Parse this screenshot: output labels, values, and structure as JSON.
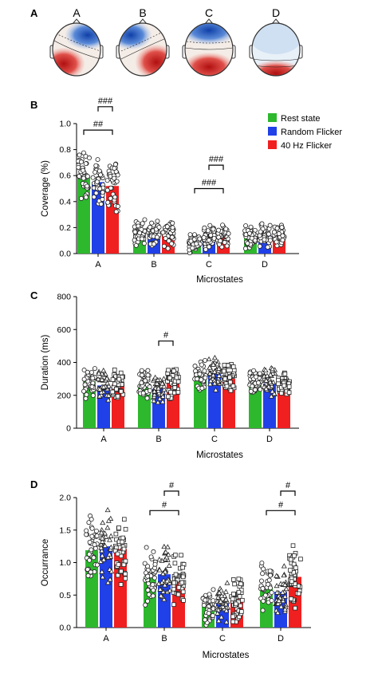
{
  "panel_labels": [
    "A",
    "B",
    "C",
    "D"
  ],
  "microstate_maps": [
    {
      "label": "A"
    },
    {
      "label": "B"
    },
    {
      "label": "C"
    },
    {
      "label": "D"
    }
  ],
  "legend": {
    "placement": "top-right of panel B",
    "entries": [
      {
        "name": "Rest state",
        "color": "#2db82d"
      },
      {
        "name": "Random Flicker",
        "color": "#2040e8"
      },
      {
        "name": "40 Hz Flicker",
        "color": "#f02020"
      }
    ]
  },
  "chart_data": [
    {
      "type": "bar",
      "panel": "B",
      "xlabel": "Microstates",
      "ylabel": "Coverage  (%)",
      "ylim": [
        0,
        1.0
      ],
      "yticks": [
        "0.0",
        "0.2",
        "0.4",
        "0.6",
        "0.8",
        "1.0"
      ],
      "categories": [
        "A",
        "B",
        "C",
        "D"
      ],
      "series": [
        {
          "name": "Rest state",
          "color": "#2db82d",
          "values": [
            0.59,
            0.16,
            0.09,
            0.13
          ]
        },
        {
          "name": "Random Flicker",
          "color": "#2040e8",
          "values": [
            0.55,
            0.15,
            0.12,
            0.14
          ]
        },
        {
          "name": "40 Hz Flicker",
          "color": "#f02020",
          "values": [
            0.52,
            0.15,
            0.13,
            0.14
          ]
        }
      ],
      "significance": [
        {
          "label": "##",
          "category": "A",
          "from": 0,
          "to": 2,
          "y": 0.95
        },
        {
          "label": "###",
          "category": "A",
          "from": 1,
          "to": 2,
          "y": 1.13
        },
        {
          "label": "###",
          "category": "C",
          "from": 0,
          "to": 2,
          "y": 0.5
        },
        {
          "label": "###",
          "category": "C",
          "from": 1,
          "to": 2,
          "y": 0.68
        }
      ]
    },
    {
      "type": "bar",
      "panel": "C",
      "xlabel": "Microstates",
      "ylabel": "Duration (ms)",
      "ylim": [
        0,
        800
      ],
      "yticks": [
        "0",
        "200",
        "400",
        "600",
        "800"
      ],
      "categories": [
        "A",
        "B",
        "C",
        "D"
      ],
      "series": [
        {
          "name": "Rest state",
          "color": "#2db82d",
          "values": [
            285,
            268,
            315,
            262
          ]
        },
        {
          "name": "Random Flicker",
          "color": "#2040e8",
          "values": [
            260,
            240,
            330,
            272
          ]
        },
        {
          "name": "40 Hz Flicker",
          "color": "#f02020",
          "values": [
            265,
            278,
            300,
            270
          ]
        }
      ],
      "significance": [
        {
          "label": "#",
          "category": "B",
          "from": 1,
          "to": 2,
          "y": 530
        }
      ]
    },
    {
      "type": "bar",
      "panel": "D",
      "xlabel": "Microstates",
      "ylabel": "Occurrance",
      "ylim": [
        0,
        2.0
      ],
      "yticks": [
        "0.0",
        "0.5",
        "1.0",
        "1.5",
        "2.0"
      ],
      "categories": [
        "A",
        "B",
        "C",
        "D"
      ],
      "series": [
        {
          "name": "Rest state",
          "color": "#2db82d",
          "values": [
            1.19,
            0.78,
            0.32,
            0.62
          ]
        },
        {
          "name": "Random Flicker",
          "color": "#2040e8",
          "values": [
            1.25,
            0.82,
            0.4,
            0.55
          ]
        },
        {
          "name": "40 Hz Flicker",
          "color": "#f02020",
          "values": [
            1.21,
            0.72,
            0.44,
            0.78
          ]
        }
      ],
      "significance": [
        {
          "label": "#",
          "category": "B",
          "from": 0,
          "to": 2,
          "y": 1.8
        },
        {
          "label": "#",
          "category": "B",
          "from": 1,
          "to": 2,
          "y": 2.1
        },
        {
          "label": "#",
          "category": "D",
          "from": 0,
          "to": 2,
          "y": 1.8
        },
        {
          "label": "#",
          "category": "D",
          "from": 1,
          "to": 2,
          "y": 2.1
        }
      ]
    }
  ]
}
